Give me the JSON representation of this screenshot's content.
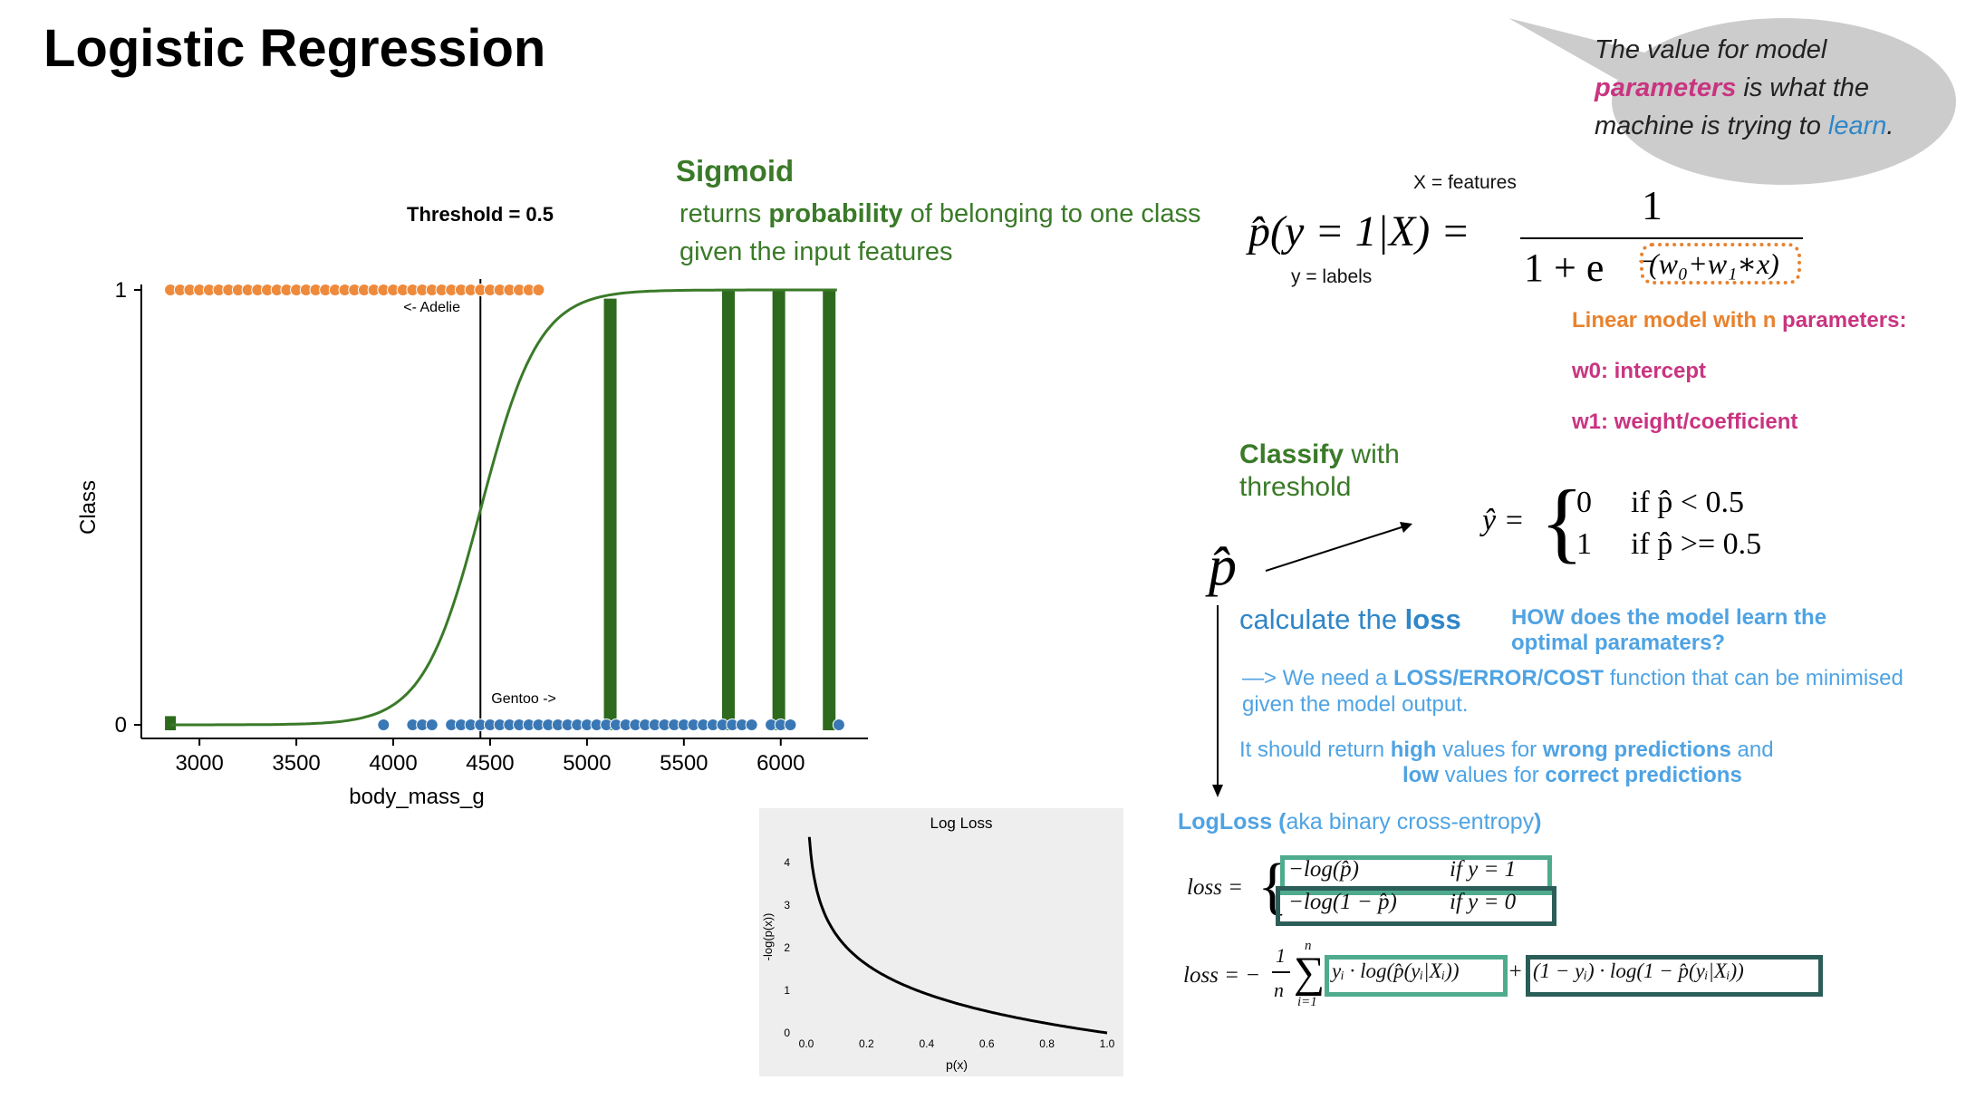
{
  "title": "Logistic Regression",
  "bubble": {
    "line1": "The value for model",
    "parameters": "parameters",
    "line2b": " is what the",
    "line3a": "machine is trying to ",
    "learn": "learn",
    "line3end": "."
  },
  "sigmoid": {
    "title": "Sigmoid",
    "desc1a": "returns ",
    "desc1b": "probability",
    "desc1c": " of belonging to one class",
    "desc2": "given the input features"
  },
  "formula": {
    "x_label": "X = features",
    "y_label": "y = labels",
    "lhs": "p̂(y = 1|X) =",
    "numerator": "1",
    "denominator_base": "1 + e",
    "exponent": "−(w₀+w₁∗x)"
  },
  "linear_model": {
    "line1a": "Linear model with n ",
    "line1b": "parameters:",
    "w0": "w0: intercept",
    "w1": "w1: weight/coefficient"
  },
  "classify": {
    "word1": "Classify",
    "word2": " with",
    "word3": "threshold",
    "phat": "p̂",
    "yhat": "ŷ =",
    "case0_val": "0",
    "case0_cond": "if p̂ < 0.5",
    "case1_val": "1",
    "case1_cond": "if p̂ >= 0.5"
  },
  "loss_section": {
    "head_a": "calculate the ",
    "head_b": "loss",
    "how1": "HOW does the model learn the",
    "how2": "optimal paramaters?",
    "need_a": "—> We need a ",
    "need_b": "LOSS/ERROR/COST",
    "need_c": " function that can be minimised",
    "need_d": "given the model output.",
    "ret1a": "It should return ",
    "ret1b": "high",
    "ret1c": " values for ",
    "ret1d": "wrong predictions",
    "ret1e": " and",
    "ret2a": "low",
    "ret2b": " values for ",
    "ret2c": "correct predictions",
    "logloss_a": "LogLoss (",
    "logloss_b": "aka binary cross-entropy",
    "logloss_c": ")"
  },
  "loss_formulas": {
    "loss_lhs": "loss =",
    "case1_expr": "−log(p̂)",
    "case1_cond": "if y = 1",
    "case2_expr": "−log(1 − p̂)",
    "case2_cond": "if y = 0",
    "loss2_lhs": "loss = −",
    "frac_num": "1",
    "frac_den": "n",
    "sum_top": "n",
    "sum_bot": "i=1",
    "sigma": "∑",
    "term1": "yᵢ · log(p̂(yᵢ|Xᵢ))",
    "plus": "+",
    "term2": "(1 − yᵢ) · log(1 − p̂(yᵢ|Xᵢ))"
  },
  "colors": {
    "green": "#3a7a28",
    "bar_green": "#2e6a1e",
    "orange": "#ee8a3c",
    "blue": "#3a78b5",
    "magenta": "#c93480",
    "light_blue": "#4fa3e3",
    "teal_light": "#4fab8e",
    "teal_dark": "#2c5e58"
  },
  "chart_data": [
    {
      "type": "scatter",
      "title": "",
      "threshold_label": "Threshold = 0.5",
      "xlabel": "body_mass_g",
      "ylabel": "Class",
      "xlim": [
        2700,
        6450
      ],
      "ylim": [
        0,
        1
      ],
      "x_ticks": [
        3000,
        3500,
        4000,
        4500,
        5000,
        5500,
        6000
      ],
      "y_ticks": [
        0,
        1
      ],
      "annotations": {
        "adelie": "<- Adelie",
        "gentoo": "Gentoo ->"
      },
      "threshold_x": 4450,
      "series": [
        {
          "class": 1,
          "x": [
            2850,
            2900,
            2950,
            3000,
            3050,
            3100,
            3150,
            3200,
            3250,
            3300,
            3350,
            3400,
            3450,
            3500,
            3550,
            3600,
            3650,
            3700,
            3750,
            3800,
            3850,
            3900,
            3950,
            4000,
            4050,
            4100,
            4150,
            4200,
            4250,
            4300,
            4350,
            4400,
            4450,
            4500,
            4550,
            4600,
            4650,
            4700,
            4750
          ]
        },
        {
          "class": 0,
          "x": [
            3950,
            4100,
            4150,
            4200,
            4300,
            4350,
            4400,
            4450,
            4500,
            4550,
            4600,
            4650,
            4700,
            4750,
            4800,
            4850,
            4900,
            4950,
            5000,
            5050,
            5100,
            5150,
            5200,
            5250,
            5300,
            5350,
            5400,
            5450,
            5500,
            5550,
            5600,
            5650,
            5700,
            5750,
            5800,
            5850,
            5950,
            6000,
            6050,
            6300,
            6300
          ]
        }
      ],
      "sigmoid": {
        "w0": -29.84,
        "w1": 0.0067
      },
      "bars": [
        {
          "x": 2850,
          "value": 0.02
        },
        {
          "x": 5120,
          "value": 0.98
        },
        {
          "x": 5730,
          "value": 1.0
        },
        {
          "x": 5990,
          "value": 1.0
        },
        {
          "x": 6250,
          "value": 1.0
        }
      ]
    },
    {
      "type": "line",
      "title": "Log Loss",
      "xlabel": "p(x)",
      "ylabel": "-log(p(x))",
      "xlim": [
        0,
        1
      ],
      "ylim": [
        0,
        4.6
      ],
      "x_ticks": [
        "0.0",
        "0.2",
        "0.4",
        "0.6",
        "0.8",
        "1.0"
      ],
      "y_ticks": [
        "0",
        "1",
        "2",
        "3",
        "4"
      ],
      "function": "-ln(p)",
      "x_start": 0.01,
      "x_end": 1.0
    }
  ]
}
